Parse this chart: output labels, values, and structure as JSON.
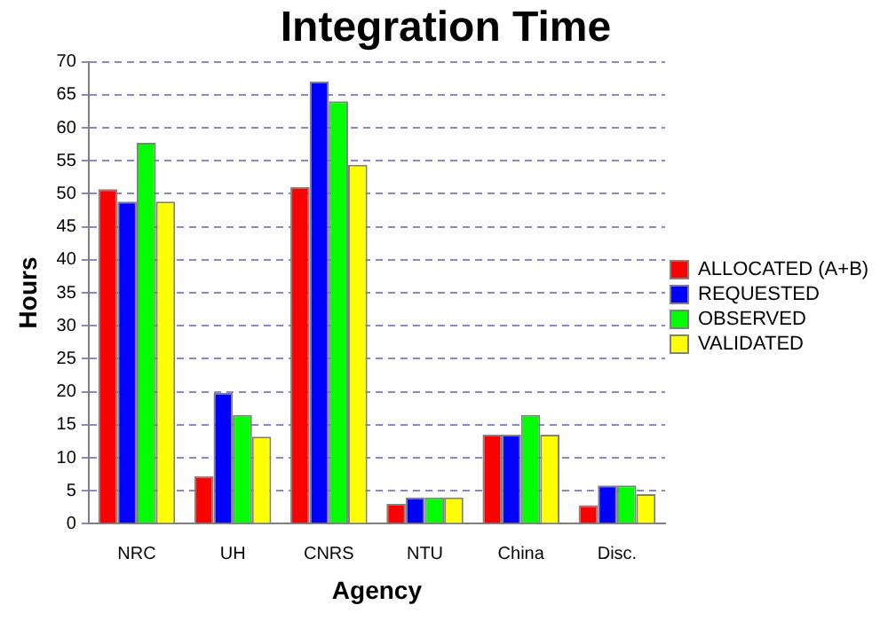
{
  "chart_data": {
    "type": "bar",
    "title": "Integration Time",
    "xlabel": "Agency",
    "ylabel": "Hours",
    "categories": [
      "NRC",
      "UH",
      "CNRS",
      "NTU",
      "China",
      "Disc."
    ],
    "series": [
      {
        "name": "ALLOCATED (A+B)",
        "color": "#ff0000",
        "values": [
          50.7,
          7.2,
          51,
          3,
          13.5,
          2.8
        ]
      },
      {
        "name": "REQUESTED",
        "color": "#0000ff",
        "values": [
          48.8,
          19.8,
          67,
          4,
          13.5,
          5.8
        ]
      },
      {
        "name": "OBSERVED",
        "color": "#00ff00",
        "values": [
          57.7,
          16.5,
          64,
          4,
          16.5,
          5.8
        ]
      },
      {
        "name": "VALIDATED",
        "color": "#ffff00",
        "values": [
          48.8,
          13.2,
          54.4,
          4,
          13.5,
          4.5
        ]
      }
    ],
    "ylim": [
      0,
      70
    ],
    "yticks": [
      0,
      5,
      10,
      15,
      20,
      25,
      30,
      35,
      40,
      45,
      50,
      55,
      60,
      65,
      70
    ],
    "grid": "y",
    "legend": "right"
  }
}
